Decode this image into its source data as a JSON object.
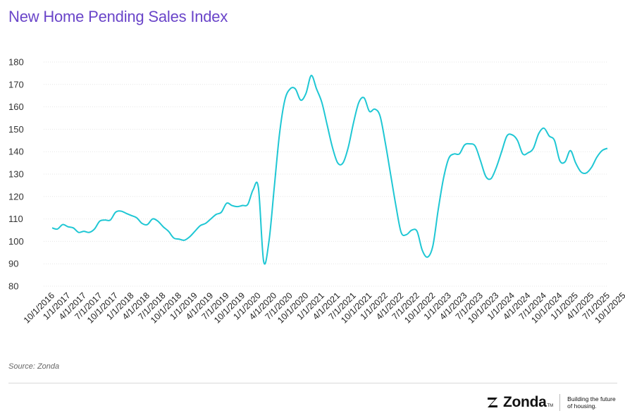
{
  "title": "New Home Pending Sales Index",
  "source": "Source: Zonda",
  "logo": {
    "name": "Zonda",
    "tm": "TM",
    "tagline": "Building the future of housing.",
    "icon": "zonda-z-icon"
  },
  "colors": {
    "title": "#6a45c9",
    "line": "#1fc7d4",
    "grid": "#e6e6e6"
  },
  "chart_data": {
    "type": "line",
    "title": "New Home Pending Sales Index",
    "xlabel": "",
    "ylabel": "",
    "ylim": [
      80,
      180
    ],
    "yticks": [
      80,
      90,
      100,
      110,
      120,
      130,
      140,
      150,
      160,
      170,
      180
    ],
    "grid": true,
    "x_ticks": [
      "10/1/2016",
      "1/1/2017",
      "4/1/2017",
      "7/1/2017",
      "10/1/2017",
      "1/1/2018",
      "4/1/2018",
      "7/1/2018",
      "10/1/2018",
      "1/1/2019",
      "4/1/2019",
      "7/1/2019",
      "10/1/2019",
      "1/1/2020",
      "4/1/2020",
      "7/1/2020",
      "10/1/2020",
      "1/1/2021",
      "4/1/2021",
      "7/1/2021",
      "10/1/2021",
      "1/1/2022",
      "4/1/2022",
      "7/1/2022",
      "10/1/2022",
      "1/1/2023",
      "4/1/2023",
      "7/1/2023",
      "10/1/2023",
      "1/1/2024",
      "4/1/2024",
      "7/1/2024",
      "10/1/2024",
      "1/1/2025",
      "4/1/2025",
      "7/1/2025",
      "10/1/2025"
    ],
    "series": [
      {
        "x_start": "10/1/2016",
        "frequency": "monthly",
        "values": [
          106,
          105.5,
          107.5,
          106.5,
          106,
          104,
          104.5,
          104,
          105.5,
          109,
          109.5,
          109.5,
          113,
          113.5,
          112.5,
          111.5,
          110.5,
          108,
          107.5,
          110,
          109,
          106.5,
          104.5,
          101.5,
          101,
          100.5,
          102,
          104.5,
          107,
          108,
          110,
          112,
          113,
          117,
          116,
          115.5,
          116,
          116.5,
          123,
          124,
          91,
          100,
          124,
          148,
          163,
          168,
          168,
          163,
          166,
          174,
          168,
          162,
          152,
          142,
          135,
          135,
          142,
          153,
          162,
          164,
          158,
          159,
          156,
          144,
          130,
          116,
          104,
          103,
          105,
          104.5,
          96,
          93,
          98,
          114,
          128,
          137,
          139,
          139,
          143,
          143.5,
          142.5,
          136,
          129,
          128,
          133,
          140,
          147,
          147.5,
          145,
          139,
          139.5,
          141.5,
          148,
          150.5,
          147,
          145,
          136,
          135.5,
          140.5,
          135,
          131,
          130.5,
          133,
          137.5,
          140.5,
          141.5
        ]
      }
    ]
  }
}
